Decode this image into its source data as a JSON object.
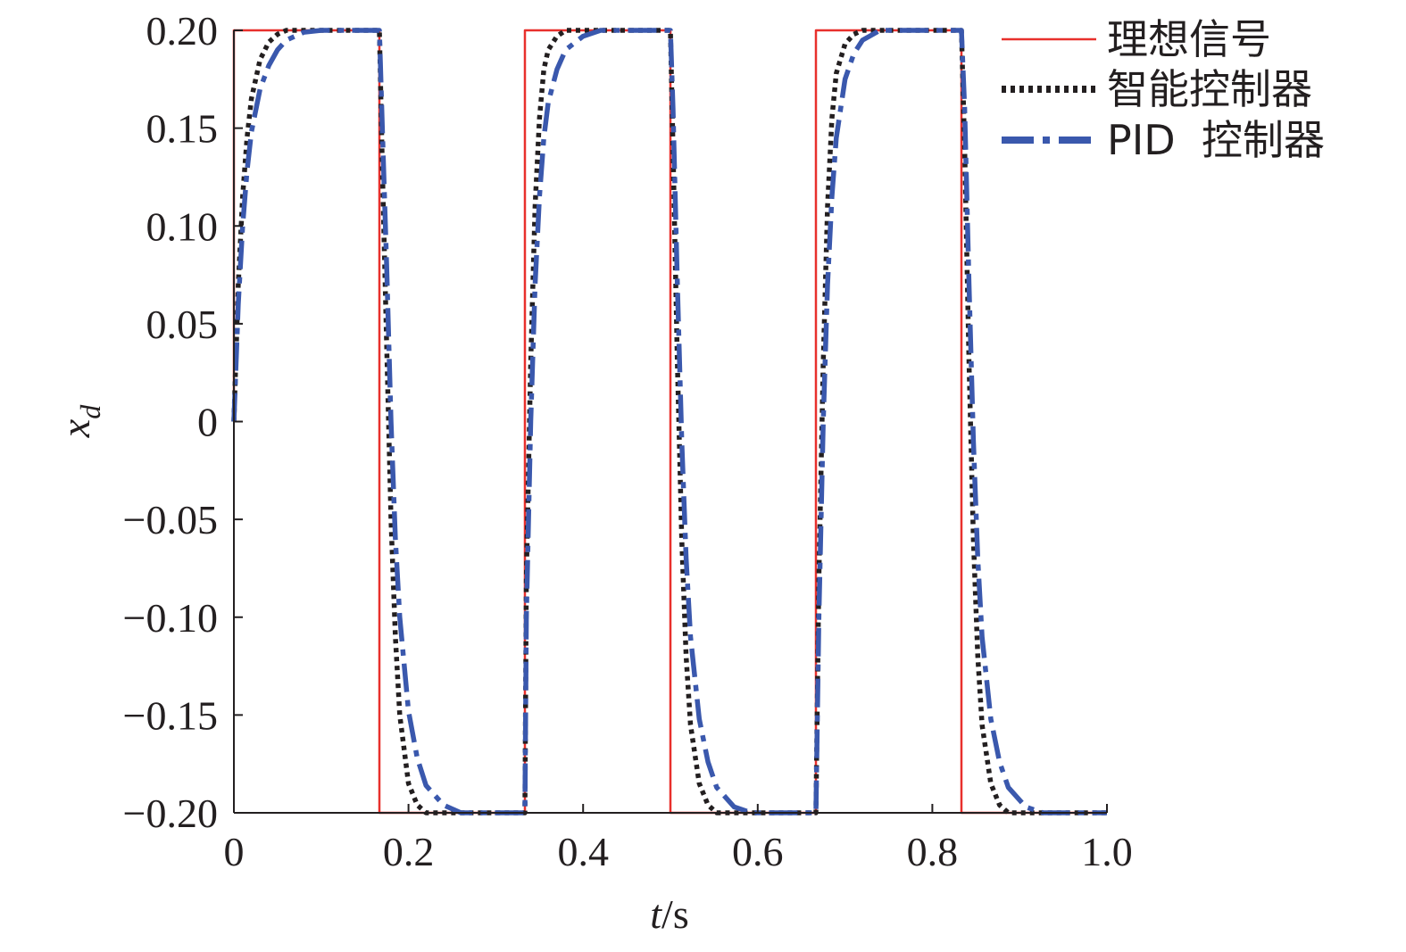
{
  "chart_data": {
    "type": "line",
    "xlabel_italic": "t",
    "xlabel_unit": "/s",
    "ylabel_main": "x",
    "ylabel_sub": "d",
    "xlim": [
      0,
      1.0
    ],
    "ylim": [
      -0.2,
      0.2
    ],
    "xticks": [
      "0",
      "0.2",
      "0.4",
      "0.6",
      "0.8",
      "1.0"
    ],
    "yticks": [
      "0.20",
      "0.15",
      "0.10",
      "0.05",
      "0",
      "−0.05",
      "−0.10",
      "−0.15",
      "−0.20"
    ],
    "ytick_values": [
      0.2,
      0.15,
      0.1,
      0.05,
      0,
      -0.05,
      -0.1,
      -0.15,
      -0.2
    ],
    "xtick_values": [
      0,
      0.2,
      0.4,
      0.6,
      0.8,
      1.0
    ],
    "legend_position": "top-right",
    "grid": false,
    "series": [
      {
        "name": "理想信号",
        "color": "#e8302c",
        "style": "solid",
        "x": [
          0,
          0,
          0.1667,
          0.1667,
          0.3333,
          0.3333,
          0.5,
          0.5,
          0.6667,
          0.6667,
          0.8333,
          0.8333,
          1.0
        ],
        "y": [
          0,
          0.2,
          0.2,
          -0.2,
          -0.2,
          0.2,
          0.2,
          -0.2,
          -0.2,
          0.2,
          0.2,
          -0.2,
          -0.2
        ]
      },
      {
        "name": "智能控制器",
        "color": "#231f20",
        "style": "dotted",
        "x": [
          0,
          0.005,
          0.01,
          0.015,
          0.02,
          0.03,
          0.04,
          0.05,
          0.06,
          0.08,
          0.1667,
          0.17,
          0.175,
          0.18,
          0.185,
          0.19,
          0.2,
          0.21,
          0.22,
          0.23,
          0.25,
          0.3333,
          0.335,
          0.34,
          0.345,
          0.35,
          0.355,
          0.36,
          0.37,
          0.38,
          0.39,
          0.41,
          0.5,
          0.503,
          0.508,
          0.513,
          0.518,
          0.523,
          0.533,
          0.543,
          0.553,
          0.563,
          0.58,
          0.6667,
          0.67,
          0.675,
          0.68,
          0.685,
          0.69,
          0.7,
          0.71,
          0.72,
          0.73,
          0.75,
          0.8333,
          0.837,
          0.842,
          0.847,
          0.852,
          0.857,
          0.867,
          0.877,
          0.887,
          0.897,
          0.915,
          1.0
        ],
        "y": [
          0,
          0.07,
          0.115,
          0.145,
          0.165,
          0.185,
          0.194,
          0.198,
          0.2,
          0.2,
          0.2,
          0.13,
          0.04,
          -0.05,
          -0.11,
          -0.15,
          -0.185,
          -0.196,
          -0.2,
          -0.2,
          -0.2,
          -0.2,
          -0.08,
          0.03,
          0.11,
          0.155,
          0.18,
          0.19,
          0.197,
          0.2,
          0.2,
          0.2,
          0.2,
          0.14,
          0.03,
          -0.06,
          -0.12,
          -0.155,
          -0.185,
          -0.196,
          -0.2,
          -0.2,
          -0.2,
          -0.2,
          -0.08,
          0.03,
          0.11,
          0.155,
          0.178,
          0.193,
          0.198,
          0.2,
          0.2,
          0.2,
          0.2,
          0.14,
          0.03,
          -0.06,
          -0.12,
          -0.155,
          -0.185,
          -0.196,
          -0.2,
          -0.2,
          -0.2,
          -0.2
        ]
      },
      {
        "name": "PID  控制器",
        "color": "#3a58ad",
        "style": "dashdot",
        "x": [
          0,
          0.005,
          0.01,
          0.015,
          0.02,
          0.03,
          0.04,
          0.05,
          0.06,
          0.08,
          0.1,
          0.12,
          0.1667,
          0.17,
          0.175,
          0.18,
          0.185,
          0.19,
          0.2,
          0.21,
          0.22,
          0.24,
          0.26,
          0.28,
          0.3333,
          0.335,
          0.34,
          0.345,
          0.35,
          0.355,
          0.36,
          0.37,
          0.38,
          0.4,
          0.42,
          0.44,
          0.5,
          0.503,
          0.508,
          0.513,
          0.518,
          0.523,
          0.533,
          0.543,
          0.553,
          0.573,
          0.593,
          0.613,
          0.6667,
          0.67,
          0.675,
          0.68,
          0.685,
          0.69,
          0.7,
          0.71,
          0.72,
          0.74,
          0.76,
          0.78,
          0.8333,
          0.837,
          0.842,
          0.847,
          0.852,
          0.857,
          0.867,
          0.877,
          0.887,
          0.907,
          0.927,
          0.947,
          1.0
        ],
        "y": [
          0,
          0.06,
          0.1,
          0.128,
          0.148,
          0.17,
          0.182,
          0.19,
          0.195,
          0.199,
          0.2,
          0.2,
          0.2,
          0.15,
          0.08,
          0.0,
          -0.06,
          -0.1,
          -0.148,
          -0.172,
          -0.186,
          -0.196,
          -0.2,
          -0.2,
          -0.2,
          -0.1,
          0.0,
          0.07,
          0.115,
          0.145,
          0.163,
          0.18,
          0.19,
          0.197,
          0.2,
          0.2,
          0.2,
          0.16,
          0.07,
          -0.01,
          -0.07,
          -0.11,
          -0.152,
          -0.174,
          -0.187,
          -0.197,
          -0.2,
          -0.2,
          -0.2,
          -0.1,
          0.0,
          0.07,
          0.115,
          0.145,
          0.175,
          0.188,
          0.195,
          0.2,
          0.2,
          0.2,
          0.2,
          0.16,
          0.07,
          -0.01,
          -0.07,
          -0.11,
          -0.152,
          -0.174,
          -0.187,
          -0.197,
          -0.2,
          -0.2,
          -0.2
        ]
      }
    ]
  }
}
